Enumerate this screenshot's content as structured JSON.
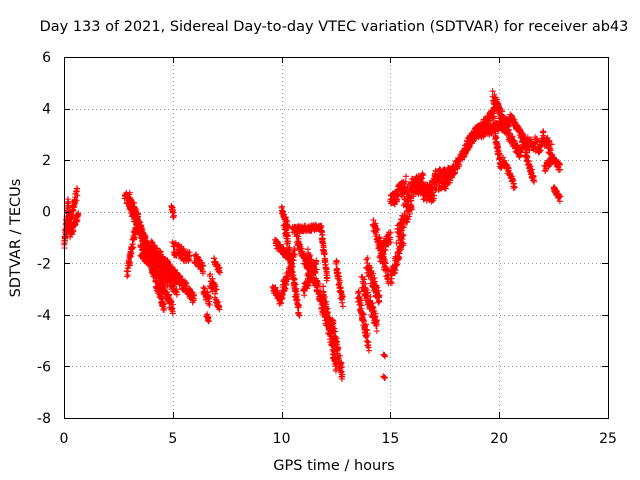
{
  "chart_data": {
    "type": "scatter",
    "title": "Day 133 of 2021, Sidereal Day-to-day VTEC variation (SDTVAR) for receiver ab43",
    "xlabel": "GPS time / hours",
    "ylabel": "SDTVAR / TECUs",
    "xlim": [
      0,
      25
    ],
    "ylim": [
      -8,
      6
    ],
    "xticks": [
      0,
      5,
      10,
      15,
      20,
      25
    ],
    "yticks": [
      -8,
      -6,
      -4,
      -2,
      0,
      2,
      4,
      6
    ],
    "grid": true,
    "marker": "+",
    "color": "#ff0000",
    "series": [
      {
        "name": "SDTVAR",
        "tracks": [
          {
            "x0": 0.0,
            "x1": 0.2,
            "y0": -1.5,
            "y1": 0.4,
            "spread": 0.15
          },
          {
            "x0": 0.1,
            "x1": 0.35,
            "y0": -0.9,
            "y1": 0.1,
            "spread": 0.15
          },
          {
            "x0": 0.2,
            "x1": 0.6,
            "y0": -0.6,
            "y1": 0.8,
            "spread": 0.2
          },
          {
            "x0": 0.3,
            "x1": 0.65,
            "y0": -0.9,
            "y1": -0.1,
            "spread": 0.15
          },
          {
            "x0": 2.9,
            "x1": 3.4,
            "y0": -2.4,
            "y1": -0.2,
            "spread": 0.15
          },
          {
            "x0": 2.8,
            "x1": 5.0,
            "y0": 0.7,
            "y1": -3.8,
            "spread": 0.2
          },
          {
            "x0": 3.0,
            "x1": 4.6,
            "y0": 0.6,
            "y1": -3.7,
            "spread": 0.2
          },
          {
            "x0": 3.2,
            "x1": 4.1,
            "y0": 0.2,
            "y1": -2.1,
            "spread": 0.2
          },
          {
            "x0": 3.5,
            "x1": 5.2,
            "y0": -1.5,
            "y1": -3.0,
            "spread": 0.25
          },
          {
            "x0": 3.7,
            "x1": 5.6,
            "y0": -1.3,
            "y1": -2.9,
            "spread": 0.2
          },
          {
            "x0": 4.0,
            "x1": 6.0,
            "y0": -1.3,
            "y1": -3.4,
            "spread": 0.2
          },
          {
            "x0": 4.95,
            "x1": 5.05,
            "y0": 0.2,
            "y1": -0.2,
            "spread": 0.1
          },
          {
            "x0": 5.0,
            "x1": 5.8,
            "y0": -1.4,
            "y1": -1.8,
            "spread": 0.25
          },
          {
            "x0": 6.0,
            "x1": 6.4,
            "y0": -1.8,
            "y1": -2.2,
            "spread": 0.2
          },
          {
            "x0": 6.4,
            "x1": 6.7,
            "y0": -3.0,
            "y1": -3.5,
            "spread": 0.2
          },
          {
            "x0": 6.55,
            "x1": 6.65,
            "y0": -4.0,
            "y1": -4.25,
            "spread": 0.05
          },
          {
            "x0": 6.7,
            "x1": 7.0,
            "y0": -2.6,
            "y1": -3.2,
            "spread": 0.3
          },
          {
            "x0": 6.9,
            "x1": 7.15,
            "y0": -1.9,
            "y1": -2.3,
            "spread": 0.1
          },
          {
            "x0": 7.0,
            "x1": 7.15,
            "y0": -3.5,
            "y1": -3.7,
            "spread": 0.1
          },
          {
            "x0": 9.6,
            "x1": 9.9,
            "y0": -2.9,
            "y1": -3.4,
            "spread": 0.15
          },
          {
            "x0": 9.7,
            "x1": 10.4,
            "y0": -1.2,
            "y1": -1.8,
            "spread": 0.15
          },
          {
            "x0": 9.9,
            "x1": 10.6,
            "y0": -3.5,
            "y1": -1.6,
            "spread": 0.25
          },
          {
            "x0": 10.0,
            "x1": 10.3,
            "y0": 0.1,
            "y1": -0.6,
            "spread": 0.1
          },
          {
            "x0": 10.1,
            "x1": 10.8,
            "y0": -0.3,
            "y1": -3.9,
            "spread": 0.25
          },
          {
            "x0": 10.5,
            "x1": 11.8,
            "y0": -0.7,
            "y1": -0.6,
            "spread": 0.12
          },
          {
            "x0": 10.7,
            "x1": 11.3,
            "y0": -1.0,
            "y1": -2.5,
            "spread": 0.2
          },
          {
            "x0": 11.0,
            "x1": 11.6,
            "y0": -3.1,
            "y1": -2.0,
            "spread": 0.25
          },
          {
            "x0": 11.2,
            "x1": 12.2,
            "y0": -1.6,
            "y1": -4.6,
            "spread": 0.3
          },
          {
            "x0": 11.8,
            "x1": 12.1,
            "y0": -0.6,
            "y1": -2.6,
            "spread": 0.15
          },
          {
            "x0": 11.9,
            "x1": 12.5,
            "y0": -3.0,
            "y1": -6.1,
            "spread": 0.3
          },
          {
            "x0": 12.3,
            "x1": 12.8,
            "y0": -4.2,
            "y1": -6.3,
            "spread": 0.3
          },
          {
            "x0": 12.5,
            "x1": 12.8,
            "y0": -2.0,
            "y1": -3.5,
            "spread": 0.2
          },
          {
            "x0": 13.5,
            "x1": 14.0,
            "y0": -3.2,
            "y1": -5.1,
            "spread": 0.3
          },
          {
            "x0": 13.7,
            "x1": 14.4,
            "y0": -2.7,
            "y1": -4.4,
            "spread": 0.3
          },
          {
            "x0": 13.9,
            "x1": 14.5,
            "y0": -2.0,
            "y1": -3.4,
            "spread": 0.3
          },
          {
            "x0": 14.2,
            "x1": 14.9,
            "y0": -0.3,
            "y1": -2.6,
            "spread": 0.3
          },
          {
            "x0": 14.5,
            "x1": 15.0,
            "y0": -1.7,
            "y1": -0.9,
            "spread": 0.3
          },
          {
            "x0": 14.7,
            "x1": 14.75,
            "y0": -5.55,
            "y1": -5.6,
            "spread": 0.02
          },
          {
            "x0": 14.7,
            "x1": 14.75,
            "y0": -6.4,
            "y1": -6.45,
            "spread": 0.02
          },
          {
            "x0": 15.0,
            "x1": 15.6,
            "y0": -2.7,
            "y1": -1.0,
            "spread": 0.3
          },
          {
            "x0": 15.0,
            "x1": 15.7,
            "y0": 0.3,
            "y1": 1.1,
            "spread": 0.3
          },
          {
            "x0": 15.3,
            "x1": 16.0,
            "y0": -0.9,
            "y1": 0.4,
            "spread": 0.35
          },
          {
            "x0": 15.6,
            "x1": 16.5,
            "y0": 0.6,
            "y1": 1.2,
            "spread": 0.35
          },
          {
            "x0": 16.0,
            "x1": 17.0,
            "y0": 1.0,
            "y1": 0.6,
            "spread": 0.3
          },
          {
            "x0": 16.5,
            "x1": 17.5,
            "y0": 0.7,
            "y1": 1.3,
            "spread": 0.3
          },
          {
            "x0": 17.0,
            "x1": 18.0,
            "y0": 1.4,
            "y1": 1.6,
            "spread": 0.2
          },
          {
            "x0": 17.5,
            "x1": 19.0,
            "y0": 1.0,
            "y1": 3.2,
            "spread": 0.2
          },
          {
            "x0": 18.5,
            "x1": 19.8,
            "y0": 2.6,
            "y1": 3.9,
            "spread": 0.2
          },
          {
            "x0": 19.0,
            "x1": 20.5,
            "y0": 3.0,
            "y1": 3.5,
            "spread": 0.2
          },
          {
            "x0": 19.7,
            "x1": 20.4,
            "y0": 4.5,
            "y1": 3.2,
            "spread": 0.2
          },
          {
            "x0": 19.8,
            "x1": 20.1,
            "y0": 3.0,
            "y1": 1.7,
            "spread": 0.15
          },
          {
            "x0": 20.0,
            "x1": 21.0,
            "y0": 3.6,
            "y1": 2.2,
            "spread": 0.2
          },
          {
            "x0": 20.2,
            "x1": 20.7,
            "y0": 2.0,
            "y1": 1.0,
            "spread": 0.15
          },
          {
            "x0": 20.5,
            "x1": 21.3,
            "y0": 3.7,
            "y1": 2.6,
            "spread": 0.15
          },
          {
            "x0": 21.0,
            "x1": 22.0,
            "y0": 2.6,
            "y1": 2.6,
            "spread": 0.3
          },
          {
            "x0": 21.2,
            "x1": 21.6,
            "y0": 2.3,
            "y1": 1.2,
            "spread": 0.15
          },
          {
            "x0": 22.0,
            "x1": 22.4,
            "y0": 2.9,
            "y1": 2.4,
            "spread": 0.25
          },
          {
            "x0": 22.1,
            "x1": 22.4,
            "y0": 1.7,
            "y1": 2.0,
            "spread": 0.15
          },
          {
            "x0": 22.4,
            "x1": 22.8,
            "y0": 2.1,
            "y1": 1.7,
            "spread": 0.15
          },
          {
            "x0": 22.5,
            "x1": 22.8,
            "y0": 0.9,
            "y1": 0.5,
            "spread": 0.1
          }
        ]
      }
    ]
  }
}
